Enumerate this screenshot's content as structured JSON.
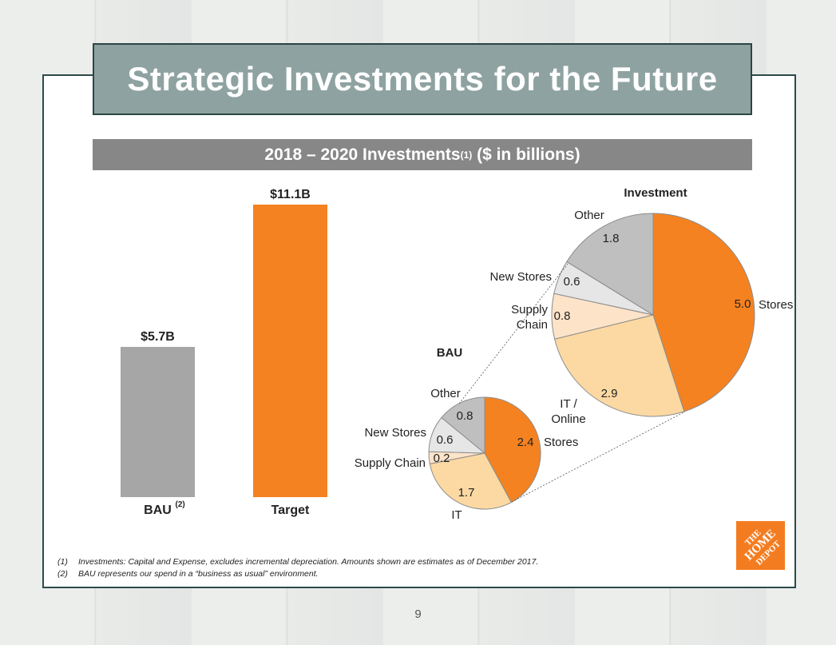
{
  "title": "Strategic Investments for the Future",
  "subtitle": {
    "main": "2018 – 2020 Investments",
    "sup": "(1)",
    "tail": " ($ in billions)"
  },
  "footnotes": [
    {
      "num": "(1)",
      "text": "Investments: Capital and Expense, excludes incremental depreciation. Amounts shown are estimates as of December 2017."
    },
    {
      "num": "(2)",
      "text": "BAU represents our spend in a “business as usual” environment."
    }
  ],
  "page_number": "9",
  "logo": {
    "lines": [
      "THE",
      "HOME",
      "DEPOT"
    ]
  },
  "colors": {
    "bau_bar": "#a6a6a6",
    "target_bar": "#f58220",
    "stores": "#f58220",
    "it": "#fcd9a2",
    "supply_chain": "#fde3c8",
    "new_stores": "#e6e6e6",
    "other": "#bfbfbf"
  },
  "chart_data": [
    {
      "type": "bar",
      "categories": [
        "BAU",
        "Target"
      ],
      "category_sups": [
        "(2)",
        ""
      ],
      "values": [
        5.7,
        11.1
      ],
      "data_labels": [
        "$5.7B",
        "$11.1B"
      ],
      "colors": [
        "#a6a6a6",
        "#f58220"
      ]
    },
    {
      "type": "pie",
      "title": "BAU",
      "labels": [
        "Stores",
        "IT",
        "Supply Chain",
        "New Stores",
        "Other"
      ],
      "values": [
        2.4,
        1.7,
        0.2,
        0.6,
        0.8
      ],
      "value_labels": [
        "2.4",
        "1.7",
        "0.2",
        "0.6",
        "0.8"
      ]
    },
    {
      "type": "pie",
      "title": "Investment",
      "labels": [
        "Stores",
        "IT / Online",
        "Supply Chain",
        "New Stores",
        "Other"
      ],
      "values": [
        5.0,
        2.9,
        0.8,
        0.6,
        1.8
      ],
      "value_labels": [
        "5.0",
        "2.9",
        "0.8",
        "0.6",
        "1.8"
      ]
    }
  ]
}
